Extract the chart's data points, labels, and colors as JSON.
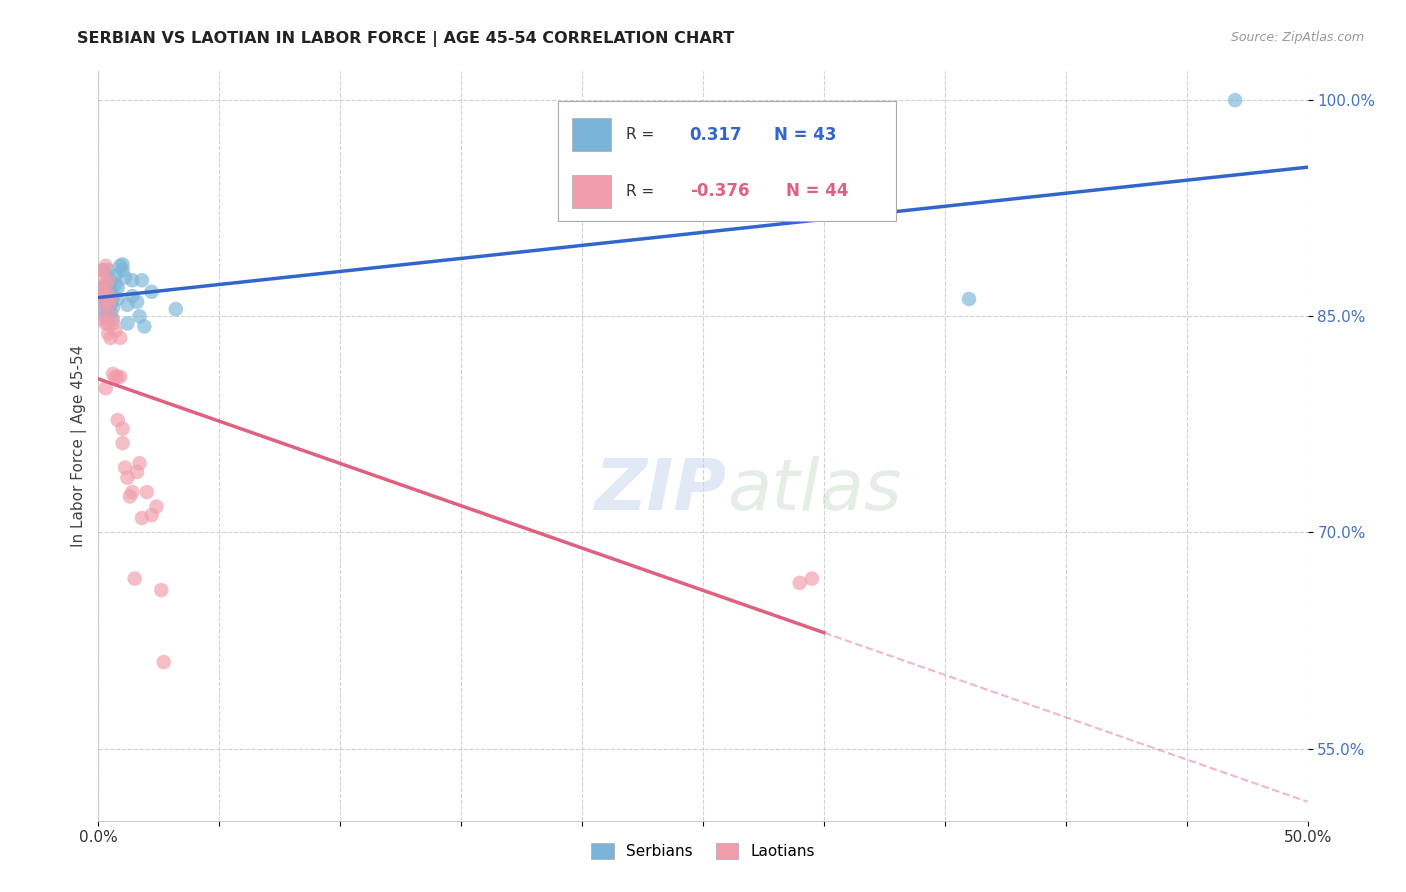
{
  "title": "SERBIAN VS LAOTIAN IN LABOR FORCE | AGE 45-54 CORRELATION CHART",
  "source": "Source: ZipAtlas.com",
  "ylabel": "In Labor Force | Age 45-54",
  "xlim": [
    0.0,
    0.5
  ],
  "ylim": [
    0.5,
    1.02
  ],
  "xticks": [
    0.0,
    0.05,
    0.1,
    0.15,
    0.2,
    0.25,
    0.3,
    0.35,
    0.4,
    0.45,
    0.5
  ],
  "yticks": [
    0.55,
    0.7,
    0.85,
    1.0
  ],
  "yticklabels": [
    "55.0%",
    "70.0%",
    "85.0%",
    "100.0%"
  ],
  "grid_yticks": [
    0.55,
    0.7,
    0.85,
    1.0
  ],
  "grid_color": "#cccccc",
  "background_color": "#ffffff",
  "serbian_color": "#7ab5d8",
  "laotian_color": "#f09caa",
  "serbian_line_color": "#3366cc",
  "laotian_line_color": "#e06080",
  "serbian_R": 0.317,
  "serbian_N": 43,
  "laotian_R": -0.376,
  "laotian_N": 44,
  "watermark_zip": "ZIP",
  "watermark_atlas": "atlas",
  "serbian_x": [
    0.001,
    0.001,
    0.002,
    0.002,
    0.002,
    0.002,
    0.003,
    0.003,
    0.003,
    0.003,
    0.004,
    0.004,
    0.004,
    0.004,
    0.004,
    0.005,
    0.005,
    0.005,
    0.005,
    0.005,
    0.006,
    0.006,
    0.006,
    0.007,
    0.007,
    0.008,
    0.008,
    0.009,
    0.01,
    0.01,
    0.011,
    0.012,
    0.012,
    0.014,
    0.014,
    0.016,
    0.017,
    0.018,
    0.019,
    0.022,
    0.032,
    0.36,
    0.47
  ],
  "serbian_y": [
    0.862,
    0.87,
    0.855,
    0.862,
    0.87,
    0.882,
    0.85,
    0.858,
    0.862,
    0.87,
    0.855,
    0.86,
    0.865,
    0.87,
    0.882,
    0.852,
    0.858,
    0.862,
    0.868,
    0.875,
    0.848,
    0.856,
    0.863,
    0.872,
    0.878,
    0.862,
    0.87,
    0.885,
    0.882,
    0.886,
    0.877,
    0.845,
    0.858,
    0.864,
    0.875,
    0.86,
    0.85,
    0.875,
    0.843,
    0.867,
    0.855,
    0.862,
    1.0
  ],
  "laotian_x": [
    0.001,
    0.001,
    0.002,
    0.002,
    0.002,
    0.002,
    0.003,
    0.003,
    0.003,
    0.003,
    0.003,
    0.004,
    0.004,
    0.004,
    0.004,
    0.004,
    0.005,
    0.005,
    0.005,
    0.006,
    0.006,
    0.007,
    0.007,
    0.008,
    0.008,
    0.009,
    0.009,
    0.01,
    0.01,
    0.011,
    0.012,
    0.013,
    0.014,
    0.015,
    0.016,
    0.017,
    0.018,
    0.02,
    0.022,
    0.024,
    0.026,
    0.027,
    0.29,
    0.295
  ],
  "laotian_y": [
    0.868,
    0.878,
    0.848,
    0.858,
    0.868,
    0.882,
    0.8,
    0.845,
    0.862,
    0.872,
    0.885,
    0.838,
    0.845,
    0.858,
    0.865,
    0.875,
    0.835,
    0.85,
    0.862,
    0.81,
    0.845,
    0.808,
    0.84,
    0.778,
    0.808,
    0.808,
    0.835,
    0.762,
    0.772,
    0.745,
    0.738,
    0.725,
    0.728,
    0.668,
    0.742,
    0.748,
    0.71,
    0.728,
    0.712,
    0.718,
    0.66,
    0.61,
    0.665,
    0.668
  ]
}
